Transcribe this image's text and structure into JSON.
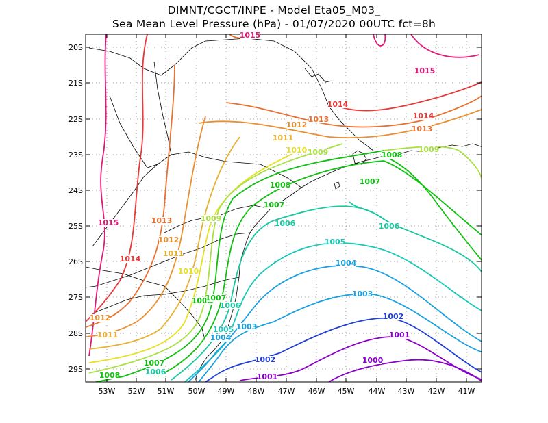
{
  "header": {
    "line1": "DIMNT/CGCT/INPE -  Model Eta05_M03_",
    "line2": "Sea Mean Level Pressure (hPa) - 01/07/2020 00UTC fct=8h"
  },
  "axes": {
    "lat_labels": [
      "20S",
      "21S",
      "22S",
      "23S",
      "24S",
      "25S",
      "26S",
      "27S",
      "28S",
      "29S"
    ],
    "lon_labels": [
      "53W",
      "52W",
      "51W",
      "50W",
      "49W",
      "48W",
      "47W",
      "46W",
      "45W",
      "44W",
      "43W",
      "42W",
      "41W"
    ]
  },
  "colors": {
    "1000": "#8a00c8",
    "1001": "#8a00c8",
    "1002": "#2040d8",
    "1003": "#1aa0e0",
    "1004": "#1aa0e0",
    "1005": "#18c8b8",
    "1006": "#18c8a0",
    "1007": "#10c010",
    "1008": "#10c010",
    "1009": "#a8e040",
    "1010": "#e8e020",
    "1011": "#e8b030",
    "1012": "#e89030",
    "1013": "#e87030",
    "1014": "#e83838",
    "1015": "#e01878"
  },
  "contour_labels": [
    {
      "text": "1015",
      "level": "1015"
    },
    {
      "text": "1015",
      "level": "1015"
    },
    {
      "text": "1015",
      "level": "1015"
    },
    {
      "text": "1014",
      "level": "1014"
    },
    {
      "text": "1014",
      "level": "1014"
    },
    {
      "text": "1014",
      "level": "1014"
    },
    {
      "text": "1013",
      "level": "1013"
    },
    {
      "text": "1013",
      "level": "1013"
    },
    {
      "text": "1013",
      "level": "1013"
    },
    {
      "text": "1012",
      "level": "1012"
    },
    {
      "text": "1012",
      "level": "1012"
    },
    {
      "text": "1012",
      "level": "1012"
    },
    {
      "text": "1011",
      "level": "1011"
    },
    {
      "text": "1011",
      "level": "1011"
    },
    {
      "text": "1011",
      "level": "1011"
    },
    {
      "text": "1010",
      "level": "1010"
    },
    {
      "text": "1010",
      "level": "1010"
    },
    {
      "text": "1009",
      "level": "1009"
    },
    {
      "text": "1009",
      "level": "1009"
    },
    {
      "text": "1009",
      "level": "1009"
    },
    {
      "text": "1008",
      "level": "1008"
    },
    {
      "text": "1008",
      "level": "1008"
    },
    {
      "text": "1008",
      "level": "1008"
    },
    {
      "text": "1008",
      "level": "1008"
    },
    {
      "text": "1007",
      "level": "1007"
    },
    {
      "text": "1007",
      "level": "1007"
    },
    {
      "text": "1007",
      "level": "1007"
    },
    {
      "text": "1007",
      "level": "1007"
    },
    {
      "text": "1006",
      "level": "1006"
    },
    {
      "text": "1006",
      "level": "1006"
    },
    {
      "text": "1006",
      "level": "1006"
    },
    {
      "text": "1006",
      "level": "1006"
    },
    {
      "text": "1005",
      "level": "1005"
    },
    {
      "text": "1005",
      "level": "1005"
    },
    {
      "text": "1004",
      "level": "1004"
    },
    {
      "text": "1004",
      "level": "1004"
    },
    {
      "text": "1003",
      "level": "1003"
    },
    {
      "text": "1003",
      "level": "1003"
    },
    {
      "text": "1002",
      "level": "1002"
    },
    {
      "text": "1002",
      "level": "1002"
    },
    {
      "text": "1001",
      "level": "1001"
    },
    {
      "text": "1001",
      "level": "1001"
    },
    {
      "text": "1000",
      "level": "1000"
    }
  ]
}
